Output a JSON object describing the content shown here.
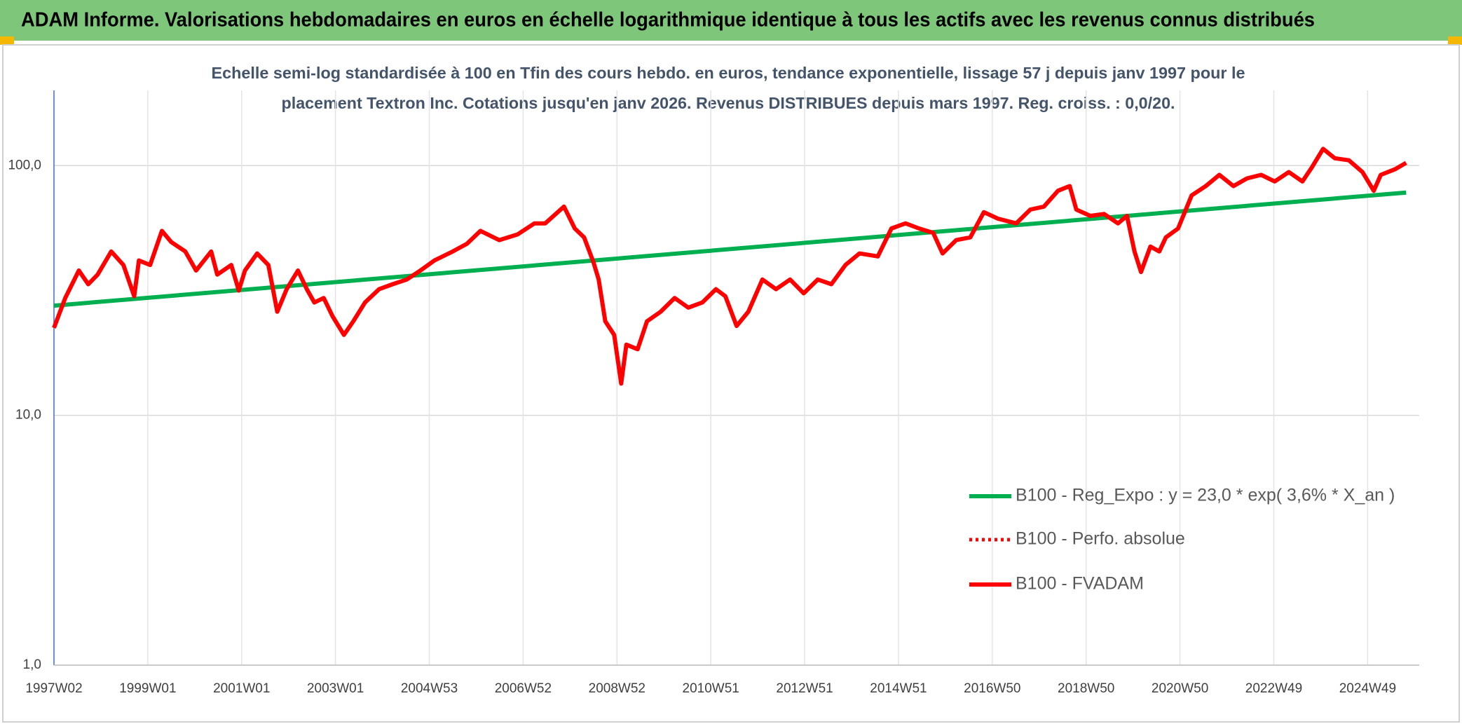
{
  "chart_data": {
    "type": "line",
    "title": "ADAM Informe. Valorisations hebdomadaires en euros en échelle logarithmique identique à tous les actifs avec les revenus connus distribués",
    "subtitle": [
      "Echelle semi-log standardisée à 100 en Tfin des cours hebdo. en euros, tendance exponentielle, lissage 57 j depuis janv 1997 pour le",
      "placement Textron Inc. Cotations jusqu'en janv 2026. Revenus DISTRIBUES depuis mars 1997. Reg. croiss. : 0,0/20."
    ],
    "log_scale": true,
    "grid": true,
    "legend_position": "right",
    "ylim": [
      1,
      200
    ],
    "yticks": [
      {
        "value": 1,
        "label": "1,0"
      },
      {
        "value": 10,
        "label": "10,0"
      },
      {
        "value": 100,
        "label": "100,0"
      }
    ],
    "xlim": [
      1997.0,
      2026.1
    ],
    "xticks": [
      {
        "value": 1997,
        "label": "1997W02"
      },
      {
        "value": 1999,
        "label": "1999W01"
      },
      {
        "value": 2001,
        "label": "2001W01"
      },
      {
        "value": 2003,
        "label": "2003W01"
      },
      {
        "value": 2005,
        "label": "2004W53"
      },
      {
        "value": 2007,
        "label": "2006W52"
      },
      {
        "value": 2009,
        "label": "2008W52"
      },
      {
        "value": 2011,
        "label": "2010W51"
      },
      {
        "value": 2013,
        "label": "2012W51"
      },
      {
        "value": 2015,
        "label": "2014W51"
      },
      {
        "value": 2017,
        "label": "2016W50"
      },
      {
        "value": 2019,
        "label": "2018W50"
      },
      {
        "value": 2021,
        "label": "2020W50"
      },
      {
        "value": 2023,
        "label": "2022W49"
      },
      {
        "value": 2025,
        "label": "2024W49"
      }
    ],
    "series": [
      {
        "name": "B100 - Reg_Expo : y = 23,0 * exp( 3,6% *  X_an )",
        "color": "#00b050",
        "dash": "solid",
        "x": [
          1997.0,
          2025.82
        ],
        "values": [
          27.5,
          78
        ]
      },
      {
        "name": "B100 - Perfo. absolue",
        "color": "#ff0000",
        "dash": "dotted",
        "x": [],
        "values": []
      },
      {
        "name": "B100 - FVADAM",
        "color": "#ff0000",
        "dash": "solid",
        "x": [
          1997.0,
          1997.24,
          1997.53,
          1997.73,
          1997.93,
          1998.22,
          1998.48,
          1998.71,
          1998.81,
          1999.05,
          1999.3,
          1999.5,
          1999.8,
          2000.03,
          2000.35,
          2000.48,
          2000.78,
          2000.94,
          2001.07,
          2001.33,
          2001.57,
          2001.76,
          2001.96,
          2002.2,
          2002.39,
          2002.55,
          2002.75,
          2002.94,
          2003.18,
          2003.38,
          2003.63,
          2003.93,
          2004.22,
          2004.52,
          2004.81,
          2005.11,
          2005.5,
          2005.8,
          2006.09,
          2006.49,
          2006.88,
          2007.24,
          2007.47,
          2007.87,
          2008.1,
          2008.3,
          2008.5,
          2008.61,
          2008.75,
          2008.94,
          2009.09,
          2009.2,
          2009.44,
          2009.64,
          2009.93,
          2010.23,
          2010.52,
          2010.82,
          2011.11,
          2011.31,
          2011.55,
          2011.8,
          2012.1,
          2012.39,
          2012.69,
          2012.98,
          2013.28,
          2013.57,
          2013.87,
          2014.17,
          2014.56,
          2014.85,
          2015.15,
          2015.44,
          2015.74,
          2015.94,
          2016.23,
          2016.53,
          2016.82,
          2017.12,
          2017.51,
          2017.81,
          2018.1,
          2018.4,
          2018.65,
          2018.79,
          2019.09,
          2019.38,
          2019.68,
          2019.87,
          2020.03,
          2020.17,
          2020.37,
          2020.56,
          2020.7,
          2020.96,
          2021.25,
          2021.55,
          2021.84,
          2022.14,
          2022.43,
          2022.73,
          2023.02,
          2023.32,
          2023.61,
          2023.81,
          2024.05,
          2024.3,
          2024.6,
          2024.89,
          2025.13,
          2025.28,
          2025.58,
          2025.82
        ],
        "values": [
          22.4,
          29.5,
          38,
          33.5,
          36.6,
          45.3,
          40,
          30,
          41.7,
          40,
          54.8,
          49.4,
          45.3,
          38,
          45.3,
          36.6,
          40,
          31.6,
          38,
          44.5,
          40,
          26,
          32,
          38,
          32,
          28.3,
          29.5,
          24.9,
          21,
          23.8,
          28.3,
          32,
          33.5,
          35,
          38,
          41.7,
          45.3,
          48.6,
          54.8,
          50.3,
          53,
          58.7,
          58.7,
          68.5,
          56,
          51.6,
          41,
          35,
          23.8,
          21,
          13.4,
          19.2,
          18.4,
          23.8,
          26,
          29.5,
          27,
          28.3,
          32,
          30,
          22.8,
          26,
          35,
          32,
          35,
          30.8,
          35,
          33.5,
          40,
          44.5,
          43.3,
          56,
          58.7,
          56,
          53.8,
          44.5,
          50.3,
          51.6,
          65.1,
          61.3,
          58.7,
          66.7,
          68.5,
          79.3,
          82.8,
          66.7,
          62.9,
          64,
          58.7,
          62.9,
          45.3,
          37.5,
          47.4,
          45.3,
          51.6,
          56,
          76,
          82.8,
          91.8,
          82.8,
          88.9,
          91.8,
          86.4,
          94.2,
          86.4,
          98.3,
          116.7,
          107,
          105,
          94.2,
          79.3,
          91.8,
          96.6,
          102.6
        ]
      }
    ]
  }
}
